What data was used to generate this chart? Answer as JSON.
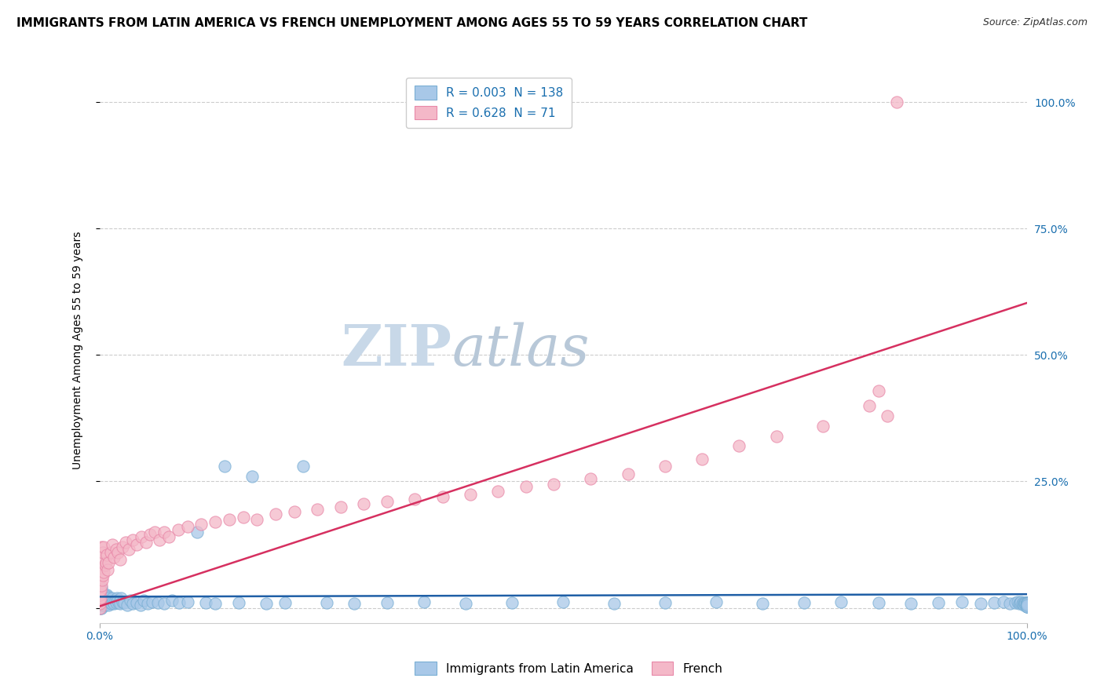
{
  "title": "IMMIGRANTS FROM LATIN AMERICA VS FRENCH UNEMPLOYMENT AMONG AGES 55 TO 59 YEARS CORRELATION CHART",
  "source": "Source: ZipAtlas.com",
  "xlabel_bottom": "Immigrants from Latin America",
  "ylabel_left": "Unemployment Among Ages 55 to 59 years",
  "series": [
    {
      "name": "Immigrants from Latin America",
      "color": "#a8c8e8",
      "edge_color": "#7aafd4",
      "R": 0.003,
      "N": 138,
      "regression_color": "#1f5fa6",
      "regression_slope": 0.005,
      "regression_intercept": 0.022,
      "points_x": [
        0.0,
        0.0,
        0.0,
        0.0,
        0.0,
        0.0,
        0.0,
        0.0,
        0.001,
        0.001,
        0.001,
        0.001,
        0.001,
        0.001,
        0.002,
        0.002,
        0.002,
        0.002,
        0.002,
        0.003,
        0.003,
        0.003,
        0.004,
        0.004,
        0.004,
        0.005,
        0.005,
        0.005,
        0.006,
        0.006,
        0.007,
        0.007,
        0.008,
        0.008,
        0.009,
        0.009,
        0.01,
        0.01,
        0.011,
        0.012,
        0.013,
        0.014,
        0.015,
        0.016,
        0.017,
        0.018,
        0.019,
        0.02,
        0.021,
        0.022,
        0.023,
        0.025,
        0.027,
        0.03,
        0.033,
        0.036,
        0.04,
        0.044,
        0.048,
        0.052,
        0.057,
        0.063,
        0.07,
        0.078,
        0.086,
        0.095,
        0.105,
        0.115,
        0.125,
        0.135,
        0.15,
        0.165,
        0.18,
        0.2,
        0.22,
        0.245,
        0.275,
        0.31,
        0.35,
        0.395,
        0.445,
        0.5,
        0.555,
        0.61,
        0.665,
        0.715,
        0.76,
        0.8,
        0.84,
        0.875,
        0.905,
        0.93,
        0.95,
        0.965,
        0.975,
        0.982,
        0.988,
        0.99,
        0.992,
        0.993,
        0.994,
        0.995,
        0.996,
        0.997,
        0.997,
        0.998,
        0.998,
        0.999,
        0.999,
        1.0,
        1.0,
        1.0,
        1.0,
        1.0,
        1.0,
        1.0,
        1.0,
        1.0,
        1.0,
        1.0,
        1.0,
        1.0,
        1.0,
        1.0,
        1.0,
        1.0,
        1.0,
        1.0,
        1.0,
        1.0,
        1.0,
        1.0,
        1.0,
        1.0,
        1.0,
        1.0,
        1.0,
        1.0
      ],
      "points_y": [
        0.0,
        0.005,
        0.01,
        0.015,
        0.02,
        0.025,
        0.03,
        0.035,
        0.0,
        0.008,
        0.015,
        0.022,
        0.03,
        0.038,
        0.0,
        0.01,
        0.02,
        0.03,
        0.04,
        0.005,
        0.015,
        0.025,
        0.005,
        0.015,
        0.025,
        0.008,
        0.018,
        0.028,
        0.005,
        0.02,
        0.008,
        0.022,
        0.01,
        0.025,
        0.008,
        0.022,
        0.005,
        0.02,
        0.01,
        0.015,
        0.008,
        0.02,
        0.012,
        0.008,
        0.015,
        0.01,
        0.02,
        0.015,
        0.01,
        0.008,
        0.02,
        0.012,
        0.01,
        0.005,
        0.015,
        0.008,
        0.01,
        0.005,
        0.015,
        0.008,
        0.012,
        0.01,
        0.008,
        0.015,
        0.01,
        0.012,
        0.15,
        0.01,
        0.008,
        0.28,
        0.01,
        0.26,
        0.008,
        0.01,
        0.28,
        0.01,
        0.008,
        0.01,
        0.012,
        0.008,
        0.01,
        0.012,
        0.008,
        0.01,
        0.012,
        0.008,
        0.01,
        0.012,
        0.01,
        0.008,
        0.01,
        0.012,
        0.008,
        0.01,
        0.012,
        0.008,
        0.01,
        0.012,
        0.008,
        0.01,
        0.012,
        0.008,
        0.01,
        0.008,
        0.005,
        0.01,
        0.008,
        0.005,
        0.01,
        0.008,
        0.005,
        0.01,
        0.008,
        0.005,
        0.01,
        0.008,
        0.005,
        0.01,
        0.008,
        0.005,
        0.01,
        0.008,
        0.005,
        0.01,
        0.008,
        0.005,
        0.003,
        0.008,
        0.005,
        0.003,
        0.008,
        0.005,
        0.003,
        0.008,
        0.005,
        0.003,
        0.008,
        0.005
      ]
    },
    {
      "name": "French",
      "color": "#f4b8c8",
      "edge_color": "#e888a8",
      "R": 0.628,
      "N": 71,
      "regression_color": "#d63060",
      "regression_slope": 0.6,
      "regression_intercept": 0.003,
      "points_x": [
        0.0,
        0.0,
        0.0,
        0.0,
        0.0,
        0.001,
        0.001,
        0.001,
        0.001,
        0.002,
        0.002,
        0.002,
        0.003,
        0.003,
        0.004,
        0.004,
        0.005,
        0.005,
        0.006,
        0.007,
        0.008,
        0.009,
        0.01,
        0.012,
        0.014,
        0.016,
        0.018,
        0.02,
        0.022,
        0.025,
        0.028,
        0.032,
        0.036,
        0.04,
        0.045,
        0.05,
        0.055,
        0.06,
        0.065,
        0.07,
        0.075,
        0.085,
        0.095,
        0.11,
        0.125,
        0.14,
        0.155,
        0.17,
        0.19,
        0.21,
        0.235,
        0.26,
        0.285,
        0.31,
        0.34,
        0.37,
        0.4,
        0.43,
        0.46,
        0.49,
        0.53,
        0.57,
        0.61,
        0.65,
        0.69,
        0.73,
        0.78,
        0.83,
        0.84,
        0.85,
        0.86
      ],
      "points_y": [
        0.0,
        0.008,
        0.015,
        0.025,
        0.035,
        0.02,
        0.035,
        0.06,
        0.08,
        0.045,
        0.08,
        0.12,
        0.055,
        0.1,
        0.065,
        0.11,
        0.07,
        0.12,
        0.085,
        0.09,
        0.105,
        0.075,
        0.09,
        0.11,
        0.125,
        0.1,
        0.115,
        0.11,
        0.095,
        0.12,
        0.13,
        0.115,
        0.135,
        0.125,
        0.14,
        0.13,
        0.145,
        0.15,
        0.135,
        0.15,
        0.14,
        0.155,
        0.16,
        0.165,
        0.17,
        0.175,
        0.18,
        0.175,
        0.185,
        0.19,
        0.195,
        0.2,
        0.205,
        0.21,
        0.215,
        0.22,
        0.225,
        0.23,
        0.24,
        0.245,
        0.255,
        0.265,
        0.28,
        0.295,
        0.32,
        0.34,
        0.36,
        0.4,
        0.43,
        0.38,
        1.0
      ]
    }
  ],
  "xlim": [
    0.0,
    1.0
  ],
  "ylim": [
    -0.03,
    1.05
  ],
  "x_ticks": [
    0.0,
    1.0
  ],
  "x_tick_labels": [
    "0.0%",
    "100.0%"
  ],
  "y_ticks_right": [
    0.0,
    0.25,
    0.5,
    0.75,
    1.0
  ],
  "y_tick_labels_right": [
    "",
    "25.0%",
    "50.0%",
    "75.0%",
    "100.0%"
  ],
  "grid_color": "#cccccc",
  "grid_style": "--",
  "background_color": "#ffffff",
  "watermark_zip_color": "#c8d8e8",
  "watermark_atlas_color": "#b8c8d8",
  "legend_R_color": "#1a6faf",
  "title_fontsize": 11,
  "axis_label_fontsize": 10,
  "tick_label_fontsize": 10,
  "legend_fontsize": 11
}
